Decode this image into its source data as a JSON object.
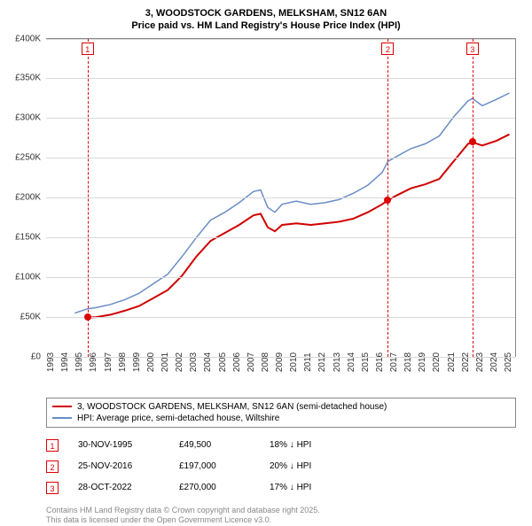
{
  "chart": {
    "title_line1": "3, WOODSTOCK GARDENS, MELKSHAM, SN12 6AN",
    "title_line2": "Price paid vs. HM Land Registry's House Price Index (HPI)",
    "type": "line",
    "background_color": "#ffffff",
    "grid_color": "#d8d8d8",
    "title_fontsize": 11,
    "axis_label_fontsize": 10,
    "xlim": [
      1993,
      2025.8
    ],
    "ylim": [
      0,
      400000
    ],
    "ytick_step": 50000,
    "yticks": [
      {
        "v": 0,
        "label": "£0"
      },
      {
        "v": 50000,
        "label": "£50K"
      },
      {
        "v": 100000,
        "label": "£100K"
      },
      {
        "v": 150000,
        "label": "£150K"
      },
      {
        "v": 200000,
        "label": "£200K"
      },
      {
        "v": 250000,
        "label": "£250K"
      },
      {
        "v": 300000,
        "label": "£300K"
      },
      {
        "v": 350000,
        "label": "£350K"
      },
      {
        "v": 400000,
        "label": "£400K"
      }
    ],
    "xticks": [
      1993,
      1994,
      1995,
      1996,
      1997,
      1998,
      1999,
      2000,
      2001,
      2002,
      2003,
      2004,
      2005,
      2006,
      2007,
      2008,
      2009,
      2010,
      2011,
      2012,
      2013,
      2014,
      2015,
      2016,
      2017,
      2018,
      2019,
      2020,
      2021,
      2022,
      2023,
      2024,
      2025
    ],
    "series": [
      {
        "key": "property",
        "color": "#d00000",
        "stroke_width": 2,
        "points": [
          [
            1995.9,
            49500
          ],
          [
            1996.5,
            50000
          ],
          [
            1997.5,
            53000
          ],
          [
            1998.5,
            58000
          ],
          [
            1999.5,
            64000
          ],
          [
            2000.5,
            74000
          ],
          [
            2001.5,
            84000
          ],
          [
            2002.5,
            102000
          ],
          [
            2003.5,
            126000
          ],
          [
            2004.5,
            146000
          ],
          [
            2005.5,
            156000
          ],
          [
            2006.5,
            166000
          ],
          [
            2007.5,
            178000
          ],
          [
            2008.0,
            180000
          ],
          [
            2008.5,
            163000
          ],
          [
            2009.0,
            158000
          ],
          [
            2009.5,
            166000
          ],
          [
            2010.5,
            168000
          ],
          [
            2011.5,
            166000
          ],
          [
            2012.5,
            168000
          ],
          [
            2013.5,
            170000
          ],
          [
            2014.5,
            174000
          ],
          [
            2015.5,
            182000
          ],
          [
            2016.5,
            192000
          ],
          [
            2016.9,
            197000
          ],
          [
            2017.5,
            203000
          ],
          [
            2018.5,
            212000
          ],
          [
            2019.5,
            217000
          ],
          [
            2020.5,
            224000
          ],
          [
            2021.5,
            246000
          ],
          [
            2022.5,
            268000
          ],
          [
            2022.82,
            270000
          ],
          [
            2023.5,
            266000
          ],
          [
            2024.5,
            272000
          ],
          [
            2025.4,
            280000
          ]
        ]
      },
      {
        "key": "hpi",
        "color": "#6a8dc7",
        "stroke_width": 1.5,
        "points": [
          [
            1995.0,
            55000
          ],
          [
            1995.9,
            60500
          ],
          [
            1996.5,
            62000
          ],
          [
            1997.5,
            66000
          ],
          [
            1998.5,
            72000
          ],
          [
            1999.5,
            80000
          ],
          [
            2000.5,
            92000
          ],
          [
            2001.5,
            104000
          ],
          [
            2002.5,
            126000
          ],
          [
            2003.5,
            150000
          ],
          [
            2004.5,
            172000
          ],
          [
            2005.5,
            182000
          ],
          [
            2006.5,
            194000
          ],
          [
            2007.5,
            208000
          ],
          [
            2008.0,
            210000
          ],
          [
            2008.5,
            188000
          ],
          [
            2009.0,
            182000
          ],
          [
            2009.5,
            192000
          ],
          [
            2010.5,
            196000
          ],
          [
            2011.5,
            192000
          ],
          [
            2012.5,
            194000
          ],
          [
            2013.5,
            198000
          ],
          [
            2014.5,
            206000
          ],
          [
            2015.5,
            216000
          ],
          [
            2016.5,
            232000
          ],
          [
            2016.9,
            246000
          ],
          [
            2017.5,
            252000
          ],
          [
            2018.5,
            262000
          ],
          [
            2019.5,
            268000
          ],
          [
            2020.5,
            278000
          ],
          [
            2021.5,
            302000
          ],
          [
            2022.5,
            322000
          ],
          [
            2022.82,
            325000
          ],
          [
            2023.5,
            316000
          ],
          [
            2024.5,
            324000
          ],
          [
            2025.4,
            332000
          ]
        ]
      }
    ],
    "markers": [
      {
        "n": "1",
        "x": 1995.9,
        "y": 49500
      },
      {
        "n": "2",
        "x": 2016.9,
        "y": 197000
      },
      {
        "n": "3",
        "x": 2022.82,
        "y": 270000
      }
    ]
  },
  "legend": {
    "items": [
      {
        "color": "#d00000",
        "stroke_width": 2,
        "label": "3, WOODSTOCK GARDENS, MELKSHAM, SN12 6AN (semi-detached house)"
      },
      {
        "color": "#6a8dc7",
        "stroke_width": 1.5,
        "label": "HPI: Average price, semi-detached house, Wiltshire"
      }
    ]
  },
  "sales": [
    {
      "n": "1",
      "date": "30-NOV-1995",
      "price": "£49,500",
      "diff": "18% ↓ HPI"
    },
    {
      "n": "2",
      "date": "25-NOV-2016",
      "price": "£197,000",
      "diff": "20% ↓ HPI"
    },
    {
      "n": "3",
      "date": "28-OCT-2022",
      "price": "£270,000",
      "diff": "17% ↓ HPI"
    }
  ],
  "attribution": {
    "line1": "Contains HM Land Registry data © Crown copyright and database right 2025.",
    "line2": "This data is licensed under the Open Government Licence v3.0."
  }
}
